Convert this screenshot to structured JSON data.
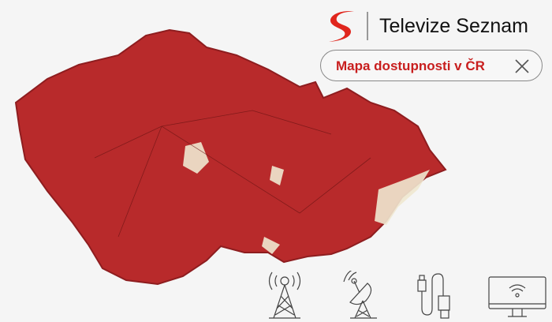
{
  "brand": {
    "name": "Televize Seznam",
    "logo_color": "#e0261d"
  },
  "panel": {
    "title": "Mapa dostupnosti v ČR",
    "close_icon": "close-icon"
  },
  "map": {
    "region": "Czech Republic",
    "coverage_color": "#b82a2b",
    "uncovered_color": "#efe8d0"
  },
  "icons": [
    "broadcast-tower-icon",
    "satellite-dish-icon",
    "usb-cable-icon",
    "smart-tv-icon"
  ],
  "colors": {
    "accent": "#c81e1e",
    "background": "#f5f5f5"
  }
}
